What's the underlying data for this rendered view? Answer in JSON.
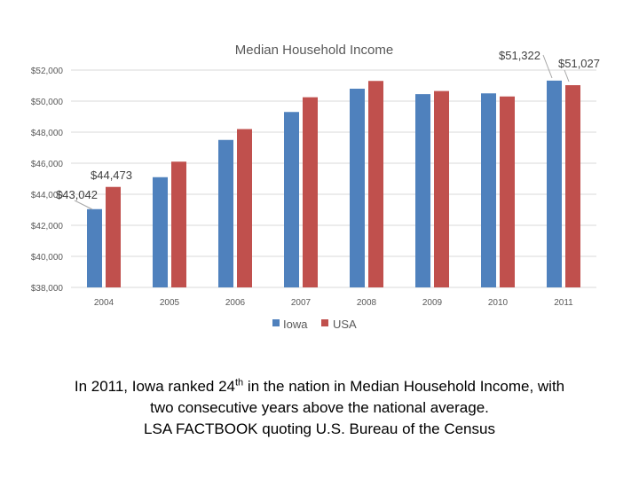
{
  "chart_data": {
    "type": "bar",
    "title": "Median Household Income",
    "categories": [
      "2004",
      "2005",
      "2006",
      "2007",
      "2008",
      "2009",
      "2010",
      "2011"
    ],
    "series": [
      {
        "name": "Iowa",
        "color": "#4f81bd",
        "values": [
          43042,
          45100,
          47500,
          49300,
          50800,
          50450,
          50500,
          51322
        ]
      },
      {
        "name": "USA",
        "color": "#c0504d",
        "values": [
          44473,
          46100,
          48200,
          50250,
          51300,
          50650,
          50300,
          51027
        ]
      }
    ],
    "yticks": [
      "$38,000",
      "$40,000",
      "$42,000",
      "$44,000",
      "$46,000",
      "$48,000",
      "$50,000",
      "$52,000"
    ],
    "ylim": [
      38000,
      52000
    ],
    "grid": true,
    "legend_position": "bottom",
    "data_labels": [
      {
        "series": 0,
        "index": 0,
        "text": "$43,042"
      },
      {
        "series": 1,
        "index": 0,
        "text": "$44,473"
      },
      {
        "series": 0,
        "index": 7,
        "text": "$51,322"
      },
      {
        "series": 1,
        "index": 7,
        "text": "$51,027"
      }
    ]
  },
  "caption": {
    "line1_before": "In 2011, Iowa ranked 24",
    "line1_sup": "th",
    "line1_after": " in the nation in Median Household Income, with",
    "line2": "two consecutive years above the national average.",
    "line3": "LSA FACTBOOK quoting U.S. Bureau of the Census"
  }
}
